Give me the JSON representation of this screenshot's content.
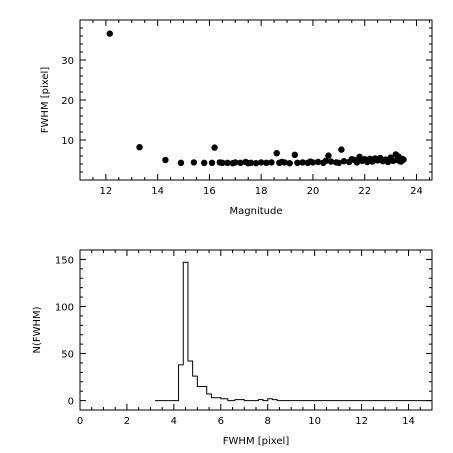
{
  "chart_data": [
    {
      "type": "scatter",
      "xlabel": "Magnitude",
      "ylabel": "FWHM [pixel]",
      "xlim": [
        11,
        24.6
      ],
      "ylim": [
        0,
        40
      ],
      "xticks": [
        12,
        14,
        16,
        18,
        20,
        22,
        24
      ],
      "yticks": [
        10,
        20,
        30
      ],
      "marker_color": "#000000",
      "points": [
        [
          12.15,
          36.6
        ],
        [
          13.3,
          8.2
        ],
        [
          14.3,
          5.0
        ],
        [
          14.9,
          4.3
        ],
        [
          15.4,
          4.4
        ],
        [
          15.8,
          4.3
        ],
        [
          16.2,
          8.1
        ],
        [
          16.1,
          4.3
        ],
        [
          16.4,
          4.4
        ],
        [
          16.7,
          4.3
        ],
        [
          16.9,
          4.2
        ],
        [
          17.0,
          4.4
        ],
        [
          17.2,
          4.3
        ],
        [
          17.4,
          4.5
        ],
        [
          17.6,
          4.3
        ],
        [
          17.8,
          4.2
        ],
        [
          18.0,
          4.4
        ],
        [
          18.2,
          4.3
        ],
        [
          18.4,
          4.4
        ],
        [
          18.6,
          6.7
        ],
        [
          18.7,
          4.3
        ],
        [
          18.9,
          4.4
        ],
        [
          19.1,
          4.2
        ],
        [
          19.3,
          6.3
        ],
        [
          19.4,
          4.3
        ],
        [
          19.6,
          4.4
        ],
        [
          19.8,
          4.3
        ],
        [
          20.0,
          4.4
        ],
        [
          20.2,
          4.5
        ],
        [
          20.4,
          4.3
        ],
        [
          20.6,
          6.1
        ],
        [
          20.7,
          4.6
        ],
        [
          20.9,
          4.4
        ],
        [
          21.1,
          7.6
        ],
        [
          21.0,
          4.3
        ],
        [
          21.2,
          4.7
        ],
        [
          21.4,
          4.5
        ],
        [
          21.5,
          5.2
        ],
        [
          21.7,
          4.4
        ],
        [
          21.8,
          5.8
        ],
        [
          21.9,
          4.8
        ],
        [
          22.1,
          4.5
        ],
        [
          22.2,
          5.3
        ],
        [
          22.3,
          4.6
        ],
        [
          22.5,
          4.9
        ],
        [
          22.6,
          5.5
        ],
        [
          22.7,
          4.7
        ],
        [
          22.8,
          5.1
        ],
        [
          22.9,
          4.5
        ],
        [
          23.0,
          5.6
        ],
        [
          23.1,
          4.8
        ],
        [
          23.2,
          6.4
        ],
        [
          23.25,
          5.0
        ],
        [
          23.3,
          5.9
        ],
        [
          23.4,
          4.6
        ],
        [
          23.45,
          5.3
        ],
        [
          20.5,
          4.8
        ],
        [
          19.9,
          4.6
        ],
        [
          18.8,
          4.5
        ],
        [
          21.6,
          5.0
        ],
        [
          22.0,
          5.2
        ],
        [
          22.4,
          5.4
        ],
        [
          23.35,
          4.8
        ],
        [
          17.5,
          4.2
        ],
        [
          16.5,
          4.3
        ],
        [
          23.5,
          5.1
        ]
      ]
    },
    {
      "type": "histogram",
      "xlabel": "FWHM [pixel]",
      "ylabel": "N(FWHM)",
      "xlim": [
        0,
        15
      ],
      "ylim": [
        -10,
        160
      ],
      "xticks": [
        0,
        2,
        4,
        6,
        8,
        10,
        12,
        14
      ],
      "yticks": [
        0,
        50,
        100,
        150
      ],
      "step_x": [
        3.2,
        4.0,
        4.2,
        4.4,
        4.6,
        4.8,
        5.0,
        5.4,
        5.6,
        6.0,
        6.3,
        6.6,
        7.0,
        7.6,
        7.8,
        8.0,
        8.2,
        8.4,
        8.6,
        15.0
      ],
      "step_y": [
        0,
        0,
        38,
        147,
        42,
        26,
        15,
        7,
        3,
        2,
        0,
        1,
        0,
        1,
        0,
        2,
        1,
        0,
        0,
        0
      ]
    }
  ]
}
